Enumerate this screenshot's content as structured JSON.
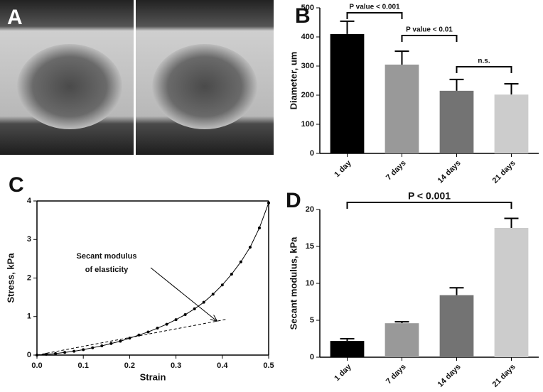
{
  "image_panel": {
    "panel": "A"
  },
  "chart_data": [
    {
      "panel": "B",
      "type": "bar",
      "ylabel": "Diameter, um",
      "categories": [
        "1 day",
        "7 days",
        "14 days",
        "21 days"
      ],
      "values": [
        410,
        305,
        215,
        202
      ],
      "errors": [
        44,
        46,
        39,
        37
      ],
      "colors": [
        "#000000",
        "#999999",
        "#737373",
        "#cccccc"
      ],
      "ylim": [
        0,
        500
      ],
      "yticks": [
        0,
        100,
        200,
        300,
        400,
        500
      ],
      "annotations": [
        "P value < 0.001",
        "P value < 0.01",
        "n.s."
      ]
    },
    {
      "panel": "C",
      "type": "line",
      "xlabel": "Strain",
      "ylabel": "Stress, kPa",
      "xlim": [
        0,
        0.5
      ],
      "ylim": [
        0,
        4
      ],
      "xticks": [
        {
          "value": 0,
          "label": "0.0"
        },
        0.1,
        0.2,
        0.3,
        0.4,
        0.5
      ],
      "yticks": [
        0,
        1,
        2,
        3,
        4
      ],
      "series": [
        {
          "color": "#000000",
          "style": "markers",
          "x": [
            0,
            0.02,
            0.04,
            0.06,
            0.08,
            0.1,
            0.12,
            0.14,
            0.16,
            0.18,
            0.2,
            0.22,
            0.24,
            0.26,
            0.28,
            0.3,
            0.32,
            0.34,
            0.36,
            0.38,
            0.4,
            0.42,
            0.44,
            0.46,
            0.48,
            0.5
          ],
          "values": [
            0,
            0.02,
            0.04,
            0.07,
            0.1,
            0.14,
            0.19,
            0.24,
            0.3,
            0.36,
            0.44,
            0.52,
            0.6,
            0.7,
            0.8,
            0.92,
            1.05,
            1.2,
            1.37,
            1.58,
            1.82,
            2.1,
            2.42,
            2.8,
            3.3,
            3.95
          ]
        },
        {
          "color": "#000000",
          "style": "dashed",
          "x": [
            0,
            0.41
          ],
          "values": [
            0,
            0.93
          ]
        }
      ],
      "annotation": [
        "Secant modulus",
        "of elasticity"
      ]
    },
    {
      "panel": "D",
      "type": "bar",
      "ylabel": "Secant modulus, kPa",
      "categories": [
        "1 day",
        "7 days",
        "14 days",
        "21 days"
      ],
      "values": [
        2.2,
        4.6,
        8.4,
        17.5
      ],
      "errors": [
        0.3,
        0.2,
        1.0,
        1.3
      ],
      "colors": [
        "#000000",
        "#999999",
        "#737373",
        "#cccccc"
      ],
      "ylim": [
        0,
        20
      ],
      "yticks": [
        0,
        5,
        10,
        15,
        20
      ],
      "annotations": [
        "P < 0.001"
      ]
    }
  ]
}
